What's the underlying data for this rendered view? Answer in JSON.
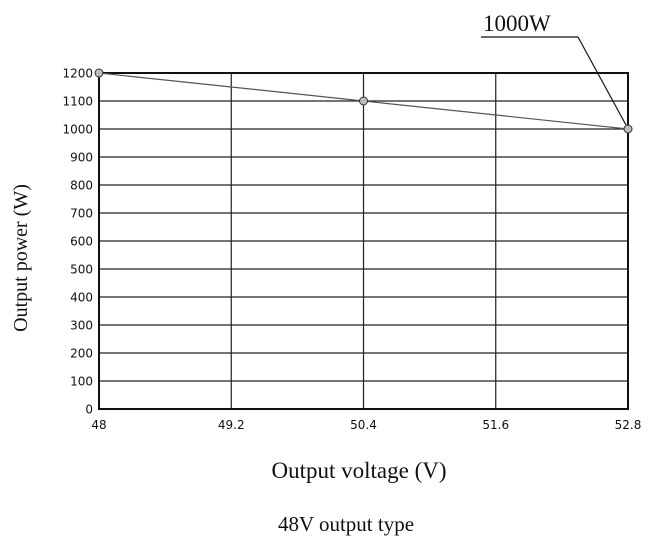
{
  "chart_data": {
    "type": "line",
    "xlabel": "Output voltage (V)",
    "ylabel": "Output power (W)",
    "caption": "48V output type",
    "x_ticks": [
      "48",
      "49.2",
      "50.4",
      "51.6",
      "52.8"
    ],
    "y_ticks": [
      "0",
      "100",
      "200",
      "300",
      "400",
      "500",
      "600",
      "700",
      "800",
      "900",
      "1000",
      "1100",
      "1200"
    ],
    "xlim": [
      48,
      52.8
    ],
    "ylim": [
      0,
      1200
    ],
    "grid": true,
    "series": [
      {
        "x": [
          48,
          50.4,
          52.8
        ],
        "y": [
          1200,
          1100,
          1000
        ]
      }
    ],
    "annotations": [
      {
        "text": "1000W",
        "x": 52.8,
        "y": 1000
      }
    ]
  }
}
